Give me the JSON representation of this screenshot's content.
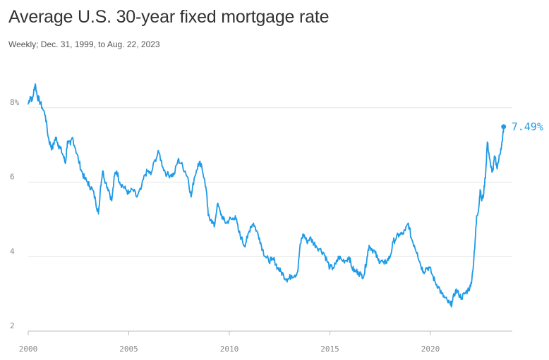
{
  "header": {
    "title": "Average U.S. 30-year fixed mortgage rate",
    "subtitle": "Weekly; Dec. 31, 1999, to Aug. 22, 2023"
  },
  "chart_data": {
    "type": "line",
    "title": "Average U.S. 30-year fixed mortgage rate",
    "subtitle": "Weekly; Dec. 31, 1999, to Aug. 22, 2023",
    "xlim": [
      2000,
      2023.65
    ],
    "ylim": [
      2,
      9
    ],
    "x_ticks": [
      2000,
      2005,
      2010,
      2015,
      2020
    ],
    "x_tick_labels": [
      "2000",
      "2005",
      "2010",
      "2015",
      "2020"
    ],
    "y_ticks": [
      2,
      4,
      6,
      8
    ],
    "y_tick_labels": [
      "2",
      "4",
      "6",
      "8%"
    ],
    "grid": "horizontal",
    "line_color": "#1f9be6",
    "end_label": "7.49%",
    "series": [
      {
        "points": [
          [
            2000.0,
            8.1
          ],
          [
            2000.1,
            8.3
          ],
          [
            2000.2,
            8.2
          ],
          [
            2000.3,
            8.5
          ],
          [
            2000.35,
            8.64
          ],
          [
            2000.45,
            8.3
          ],
          [
            2000.55,
            8.2
          ],
          [
            2000.7,
            8.0
          ],
          [
            2000.85,
            7.8
          ],
          [
            2001.0,
            7.2
          ],
          [
            2001.1,
            7.0
          ],
          [
            2001.2,
            6.9
          ],
          [
            2001.3,
            7.1
          ],
          [
            2001.4,
            7.2
          ],
          [
            2001.5,
            7.0
          ],
          [
            2001.6,
            6.9
          ],
          [
            2001.75,
            6.7
          ],
          [
            2001.85,
            6.5
          ],
          [
            2001.95,
            7.1
          ],
          [
            2002.1,
            7.0
          ],
          [
            2002.2,
            7.2
          ],
          [
            2002.35,
            6.9
          ],
          [
            2002.5,
            6.6
          ],
          [
            2002.65,
            6.3
          ],
          [
            2002.8,
            6.1
          ],
          [
            2002.95,
            6.0
          ],
          [
            2003.05,
            5.9
          ],
          [
            2003.2,
            5.8
          ],
          [
            2003.35,
            5.5
          ],
          [
            2003.45,
            5.25
          ],
          [
            2003.5,
            5.2
          ],
          [
            2003.6,
            5.9
          ],
          [
            2003.7,
            6.3
          ],
          [
            2003.85,
            6.0
          ],
          [
            2004.0,
            5.8
          ],
          [
            2004.15,
            5.5
          ],
          [
            2004.3,
            6.2
          ],
          [
            2004.4,
            6.3
          ],
          [
            2004.55,
            6.0
          ],
          [
            2004.7,
            5.9
          ],
          [
            2004.85,
            5.8
          ],
          [
            2005.0,
            5.7
          ],
          [
            2005.2,
            5.8
          ],
          [
            2005.4,
            5.6
          ],
          [
            2005.6,
            5.8
          ],
          [
            2005.8,
            6.2
          ],
          [
            2005.95,
            6.3
          ],
          [
            2006.1,
            6.2
          ],
          [
            2006.3,
            6.6
          ],
          [
            2006.5,
            6.8
          ],
          [
            2006.7,
            6.4
          ],
          [
            2006.9,
            6.2
          ],
          [
            2007.1,
            6.2
          ],
          [
            2007.25,
            6.2
          ],
          [
            2007.45,
            6.6
          ],
          [
            2007.6,
            6.5
          ],
          [
            2007.8,
            6.3
          ],
          [
            2007.95,
            6.1
          ],
          [
            2008.1,
            5.6
          ],
          [
            2008.25,
            6.1
          ],
          [
            2008.45,
            6.5
          ],
          [
            2008.6,
            6.5
          ],
          [
            2008.75,
            6.1
          ],
          [
            2008.85,
            5.8
          ],
          [
            2008.95,
            5.1
          ],
          [
            2009.1,
            5.0
          ],
          [
            2009.25,
            4.8
          ],
          [
            2009.4,
            5.4
          ],
          [
            2009.55,
            5.2
          ],
          [
            2009.7,
            5.0
          ],
          [
            2009.85,
            4.9
          ],
          [
            2010.0,
            5.0
          ],
          [
            2010.15,
            5.0
          ],
          [
            2010.3,
            5.1
          ],
          [
            2010.45,
            4.7
          ],
          [
            2010.6,
            4.5
          ],
          [
            2010.75,
            4.3
          ],
          [
            2010.9,
            4.5
          ],
          [
            2011.05,
            4.8
          ],
          [
            2011.2,
            4.9
          ],
          [
            2011.35,
            4.7
          ],
          [
            2011.5,
            4.5
          ],
          [
            2011.65,
            4.2
          ],
          [
            2011.8,
            4.0
          ],
          [
            2011.95,
            3.9
          ],
          [
            2012.1,
            3.9
          ],
          [
            2012.25,
            3.9
          ],
          [
            2012.4,
            3.7
          ],
          [
            2012.55,
            3.6
          ],
          [
            2012.7,
            3.5
          ],
          [
            2012.85,
            3.4
          ],
          [
            2012.95,
            3.4
          ],
          [
            2013.1,
            3.5
          ],
          [
            2013.25,
            3.5
          ],
          [
            2013.4,
            3.6
          ],
          [
            2013.5,
            4.2
          ],
          [
            2013.6,
            4.5
          ],
          [
            2013.7,
            4.6
          ],
          [
            2013.85,
            4.4
          ],
          [
            2014.0,
            4.5
          ],
          [
            2014.15,
            4.4
          ],
          [
            2014.3,
            4.3
          ],
          [
            2014.5,
            4.2
          ],
          [
            2014.7,
            4.1
          ],
          [
            2014.85,
            3.9
          ],
          [
            2015.0,
            3.7
          ],
          [
            2015.15,
            3.7
          ],
          [
            2015.3,
            3.8
          ],
          [
            2015.45,
            4.0
          ],
          [
            2015.6,
            3.9
          ],
          [
            2015.8,
            3.9
          ],
          [
            2015.95,
            4.0
          ],
          [
            2016.1,
            3.7
          ],
          [
            2016.25,
            3.6
          ],
          [
            2016.4,
            3.6
          ],
          [
            2016.55,
            3.5
          ],
          [
            2016.7,
            3.5
          ],
          [
            2016.85,
            4.0
          ],
          [
            2016.95,
            4.3
          ],
          [
            2017.1,
            4.2
          ],
          [
            2017.25,
            4.1
          ],
          [
            2017.4,
            3.9
          ],
          [
            2017.55,
            3.9
          ],
          [
            2017.7,
            3.8
          ],
          [
            2017.85,
            3.9
          ],
          [
            2018.0,
            4.0
          ],
          [
            2018.15,
            4.4
          ],
          [
            2018.3,
            4.5
          ],
          [
            2018.45,
            4.6
          ],
          [
            2018.6,
            4.6
          ],
          [
            2018.75,
            4.7
          ],
          [
            2018.9,
            4.9
          ],
          [
            2019.05,
            4.5
          ],
          [
            2019.2,
            4.3
          ],
          [
            2019.35,
            4.1
          ],
          [
            2019.5,
            3.8
          ],
          [
            2019.65,
            3.6
          ],
          [
            2019.8,
            3.7
          ],
          [
            2019.95,
            3.7
          ],
          [
            2020.1,
            3.5
          ],
          [
            2020.25,
            3.3
          ],
          [
            2020.4,
            3.2
          ],
          [
            2020.55,
            3.0
          ],
          [
            2020.7,
            2.9
          ],
          [
            2020.85,
            2.8
          ],
          [
            2021.0,
            2.7
          ],
          [
            2021.1,
            2.8
          ],
          [
            2021.25,
            3.1
          ],
          [
            2021.4,
            3.0
          ],
          [
            2021.55,
            2.9
          ],
          [
            2021.7,
            3.0
          ],
          [
            2021.85,
            3.1
          ],
          [
            2022.0,
            3.2
          ],
          [
            2022.1,
            3.6
          ],
          [
            2022.2,
            4.2
          ],
          [
            2022.3,
            5.1
          ],
          [
            2022.4,
            5.3
          ],
          [
            2022.47,
            5.8
          ],
          [
            2022.55,
            5.5
          ],
          [
            2022.65,
            5.7
          ],
          [
            2022.75,
            6.3
          ],
          [
            2022.83,
            7.08
          ],
          [
            2022.9,
            6.8
          ],
          [
            2023.0,
            6.4
          ],
          [
            2023.1,
            6.3
          ],
          [
            2023.2,
            6.7
          ],
          [
            2023.3,
            6.4
          ],
          [
            2023.4,
            6.6
          ],
          [
            2023.5,
            6.9
          ],
          [
            2023.58,
            7.1
          ],
          [
            2023.64,
            7.49
          ]
        ]
      }
    ]
  }
}
